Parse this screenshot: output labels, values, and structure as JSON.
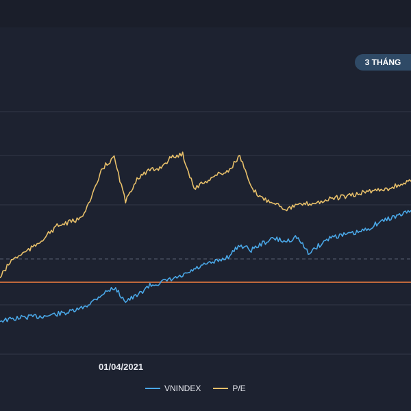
{
  "range_button": {
    "label": "3 THÁNG"
  },
  "chart_data": {
    "type": "line",
    "x_tick_labels": [
      "01/04/2021"
    ],
    "legend": [
      {
        "name": "VNINDEX",
        "color": "#4aa8e8"
      },
      {
        "name": "P/E",
        "color": "#e8c06a"
      }
    ],
    "legend_placement": "bottom-center",
    "grid": true,
    "reference_line_color": "#c0683c",
    "series": [
      {
        "name": "VNINDEX",
        "color": "#4aa8e8",
        "values": [
          0.0,
          0.04,
          0.1,
          0.12,
          0.14,
          0.2,
          0.25,
          0.35,
          0.55,
          0.82,
          1.0,
          0.6,
          0.75,
          1.05,
          1.15,
          1.25,
          1.35,
          1.55,
          1.7,
          1.8,
          1.95,
          2.3,
          2.15,
          2.35,
          2.5,
          2.4,
          2.55,
          2.05,
          2.3,
          2.55,
          2.6,
          2.65,
          2.75,
          2.95,
          3.1,
          3.2,
          3.35
        ]
      },
      {
        "name": "P/E",
        "color": "#e8c06a",
        "values": [
          0.0,
          0.5,
          0.7,
          0.9,
          1.2,
          1.5,
          1.6,
          1.7,
          2.3,
          3.2,
          3.5,
          2.2,
          2.9,
          3.1,
          3.2,
          3.5,
          3.6,
          2.6,
          2.8,
          3.0,
          3.1,
          3.55,
          2.6,
          2.3,
          2.2,
          2.0,
          2.1,
          2.15,
          2.2,
          2.3,
          2.35,
          2.4,
          2.5,
          2.55,
          2.6,
          2.7,
          2.8
        ]
      }
    ]
  }
}
